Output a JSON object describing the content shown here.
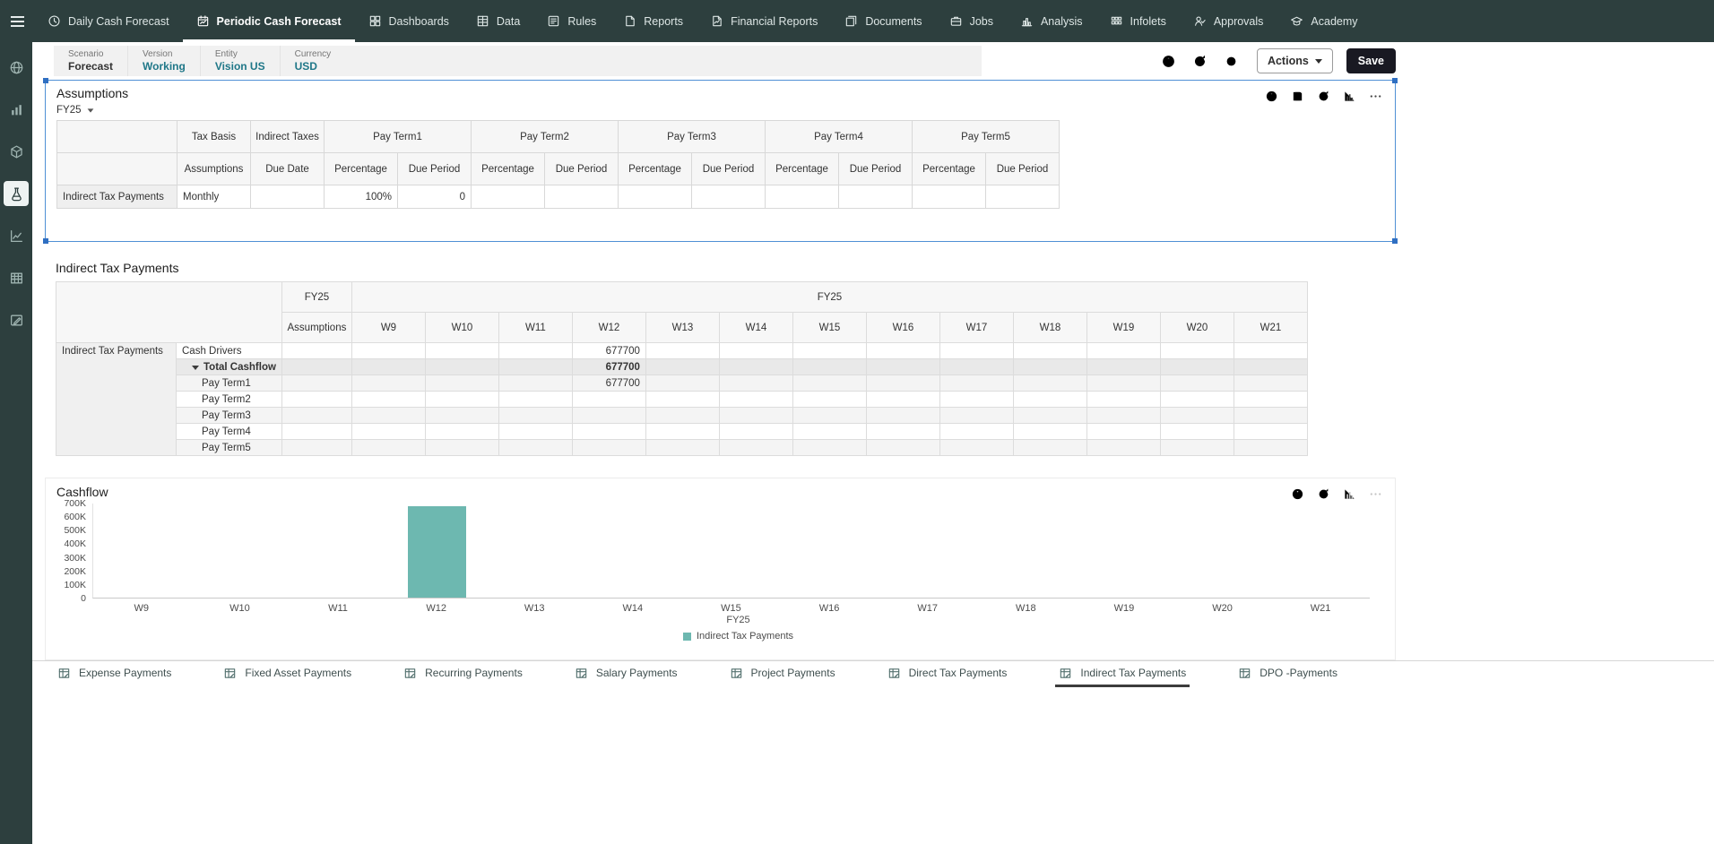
{
  "colors": {
    "nav_bg": "#2d3f3e",
    "link_teal": "#1f7788",
    "bar_teal": "#6db8b0",
    "selection_blue": "#4f90d5",
    "save_button_bg": "#191922"
  },
  "top_nav": {
    "items": [
      {
        "label": "Daily Cash Forecast",
        "icon": "clock-cash-icon",
        "active": false
      },
      {
        "label": "Periodic Cash Forecast",
        "icon": "calendar-forecast-icon",
        "active": true
      },
      {
        "label": "Dashboards",
        "icon": "dashboard-icon",
        "active": false
      },
      {
        "label": "Data",
        "icon": "data-grid-icon",
        "active": false
      },
      {
        "label": "Rules",
        "icon": "rules-icon",
        "active": false
      },
      {
        "label": "Reports",
        "icon": "reports-icon",
        "active": false
      },
      {
        "label": "Financial Reports",
        "icon": "financial-reports-icon",
        "active": false
      },
      {
        "label": "Documents",
        "icon": "documents-icon",
        "active": false
      },
      {
        "label": "Jobs",
        "icon": "jobs-icon",
        "active": false
      },
      {
        "label": "Analysis",
        "icon": "analysis-icon",
        "active": false
      },
      {
        "label": "Infolets",
        "icon": "infolets-icon",
        "active": false
      },
      {
        "label": "Approvals",
        "icon": "approvals-icon",
        "active": false
      },
      {
        "label": "Academy",
        "icon": "academy-icon",
        "active": false
      }
    ]
  },
  "sidebar": {
    "items": [
      {
        "name": "globe",
        "icon": "globe-icon",
        "active": false
      },
      {
        "name": "bar-chart",
        "icon": "bar-chart-icon",
        "active": false
      },
      {
        "name": "cube",
        "icon": "cube-icon",
        "active": false
      },
      {
        "name": "flask",
        "icon": "flask-icon",
        "active": true
      },
      {
        "name": "line-chart",
        "icon": "line-chart-icon",
        "active": false
      },
      {
        "name": "table",
        "icon": "table-icon",
        "active": false
      },
      {
        "name": "pen",
        "icon": "pen-icon",
        "active": false
      }
    ]
  },
  "pov": {
    "segments": [
      {
        "label": "Scenario",
        "value": "Forecast",
        "link": false
      },
      {
        "label": "Version",
        "value": "Working",
        "link": true
      },
      {
        "label": "Entity",
        "value": "Vision US",
        "link": true
      },
      {
        "label": "Currency",
        "value": "USD",
        "link": true
      }
    ]
  },
  "header_actions": {
    "icons": [
      "info-icon",
      "refresh-icon",
      "gear-icon"
    ],
    "actions_label": "Actions",
    "save_label": "Save"
  },
  "assumptions_panel": {
    "title": "Assumptions",
    "year_selector": "FY25",
    "toolbar_icons": [
      "info-icon",
      "save-icon",
      "refresh-icon",
      "chart-icon",
      "more-icon"
    ],
    "grid": {
      "group_row": [
        {
          "label": "",
          "span": 1
        },
        {
          "label": "Tax Basis",
          "span": 1
        },
        {
          "label": "Indirect Taxes",
          "span": 1
        },
        {
          "label": "Pay Term1",
          "span": 2
        },
        {
          "label": "Pay Term2",
          "span": 2
        },
        {
          "label": "Pay Term3",
          "span": 2
        },
        {
          "label": "Pay Term4",
          "span": 2
        },
        {
          "label": "Pay Term5",
          "span": 2
        }
      ],
      "header_row": [
        "Assumptions",
        "Due Date",
        "Percentage",
        "Due Period",
        "Percentage",
        "Due Period",
        "Percentage",
        "Due Period",
        "Percentage",
        "Due Period",
        "Percentage",
        "Due Period"
      ],
      "rows": [
        {
          "header": "Indirect Tax Payments",
          "cells": [
            "Monthly",
            "",
            "100%",
            "0",
            "",
            "",
            "",
            "",
            "",
            "",
            "",
            ""
          ]
        }
      ]
    }
  },
  "payments_section": {
    "title": "Indirect Tax Payments",
    "grid": {
      "year_label": "FY25",
      "assumptions_col_label": "Assumptions",
      "weeks": [
        "W9",
        "W10",
        "W11",
        "W12",
        "W13",
        "W14",
        "W15",
        "W16",
        "W17",
        "W18",
        "W19",
        "W20",
        "W21"
      ],
      "row_header": "Indirect Tax Payments",
      "rows": [
        {
          "label": "Cash Drivers",
          "indent": 0,
          "style": "plain",
          "expanded": false,
          "values": {
            "W12": "677700"
          }
        },
        {
          "label": "Total Cashflow",
          "indent": 1,
          "style": "total",
          "expanded": true,
          "values": {
            "W12": "677700"
          }
        },
        {
          "label": "Pay Term1",
          "indent": 2,
          "style": "shade",
          "expanded": false,
          "values": {
            "W12": "677700"
          }
        },
        {
          "label": "Pay Term2",
          "indent": 2,
          "style": "plain",
          "expanded": false,
          "values": {}
        },
        {
          "label": "Pay Term3",
          "indent": 2,
          "style": "shade",
          "expanded": false,
          "values": {}
        },
        {
          "label": "Pay Term4",
          "indent": 2,
          "style": "plain",
          "expanded": false,
          "values": {}
        },
        {
          "label": "Pay Term5",
          "indent": 2,
          "style": "shade",
          "expanded": false,
          "values": {}
        }
      ]
    }
  },
  "cashflow_panel": {
    "title": "Cashflow",
    "toolbar_icons": [
      "info-icon",
      "refresh-icon",
      "chart-icon",
      "more-icon"
    ]
  },
  "chart_data": {
    "type": "bar",
    "title": "Cashflow",
    "categories": [
      "W9",
      "W10",
      "W11",
      "W12",
      "W13",
      "W14",
      "W15",
      "W16",
      "W17",
      "W18",
      "W19",
      "W20",
      "W21"
    ],
    "values": [
      0,
      0,
      0,
      677700,
      0,
      0,
      0,
      0,
      0,
      0,
      0,
      0,
      0
    ],
    "series_name": "Indirect Tax Payments",
    "xlabel": "FY25",
    "ylabel": "",
    "ylim": [
      0,
      700000
    ],
    "yticks": [
      "700K",
      "600K",
      "500K",
      "400K",
      "300K",
      "200K",
      "100K",
      "0"
    ],
    "grid": false,
    "bar_color": "#6db8b0",
    "legend": {
      "position": "bottom",
      "entries": [
        {
          "label": "Indirect Tax Payments",
          "color": "#6db8b0"
        }
      ]
    }
  },
  "bottom_tabs": {
    "icon": "payments-grid-icon",
    "items": [
      {
        "label": "Expense Payments",
        "active": false
      },
      {
        "label": "Fixed Asset Payments",
        "active": false
      },
      {
        "label": "Recurring Payments",
        "active": false
      },
      {
        "label": "Salary Payments",
        "active": false
      },
      {
        "label": "Project Payments",
        "active": false
      },
      {
        "label": "Direct Tax Payments",
        "active": false
      },
      {
        "label": "Indirect Tax Payments",
        "active": true
      },
      {
        "label": "DPO -Payments",
        "active": false
      }
    ]
  }
}
